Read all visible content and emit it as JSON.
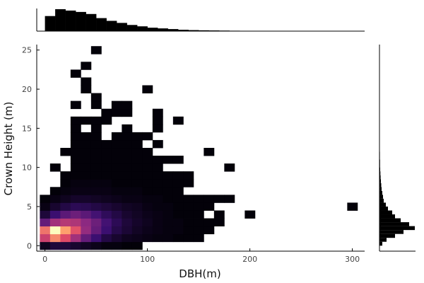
{
  "chart_data": {
    "type": "heatmap",
    "title": "",
    "xlabel": "DBH(m)",
    "ylabel": "Crown Height (m)",
    "xlim": [
      -8,
      312
    ],
    "ylim": [
      -0.7,
      25.7
    ],
    "x_ticks": [
      0,
      100,
      200,
      300
    ],
    "x_tick_labels": [
      "0",
      "100",
      "200",
      "300"
    ],
    "y_ticks": [
      0,
      5,
      10,
      15,
      20,
      25
    ],
    "y_tick_labels": [
      "0",
      "5",
      "10",
      "15",
      "20",
      "25"
    ],
    "colormap": [
      "#000004",
      "#3b0f70",
      "#8c2981",
      "#de4968",
      "#fe9f6d",
      "#fcfdbf"
    ],
    "grid": false,
    "bin_width_x": 10,
    "bin_height_y": 1,
    "heatmap_cells": [
      {
        "x": 0,
        "y": 0,
        "v": 0.05
      },
      {
        "x": 10,
        "y": 0,
        "v": 0.1
      },
      {
        "x": 20,
        "y": 0,
        "v": 0.1
      },
      {
        "x": 30,
        "y": 0,
        "v": 0.08
      },
      {
        "x": 40,
        "y": 0,
        "v": 0.06
      },
      {
        "x": 50,
        "y": 0,
        "v": 0.04
      },
      {
        "x": 60,
        "y": 0,
        "v": 0.02
      },
      {
        "x": 70,
        "y": 0,
        "v": 0.02
      },
      {
        "x": 80,
        "y": 0,
        "v": 0.01
      },
      {
        "x": 90,
        "y": 0,
        "v": 0.01
      },
      {
        "x": 0,
        "y": 1,
        "v": 0.55
      },
      {
        "x": 10,
        "y": 1,
        "v": 0.75
      },
      {
        "x": 20,
        "y": 1,
        "v": 0.6
      },
      {
        "x": 30,
        "y": 1,
        "v": 0.45
      },
      {
        "x": 40,
        "y": 1,
        "v": 0.3
      },
      {
        "x": 50,
        "y": 1,
        "v": 0.2
      },
      {
        "x": 60,
        "y": 1,
        "v": 0.12
      },
      {
        "x": 70,
        "y": 1,
        "v": 0.08
      },
      {
        "x": 80,
        "y": 1,
        "v": 0.05
      },
      {
        "x": 90,
        "y": 1,
        "v": 0.04
      },
      {
        "x": 100,
        "y": 1,
        "v": 0.03
      },
      {
        "x": 110,
        "y": 1,
        "v": 0.02
      },
      {
        "x": 120,
        "y": 1,
        "v": 0.02
      },
      {
        "x": 130,
        "y": 1,
        "v": 0.01
      },
      {
        "x": 140,
        "y": 1,
        "v": 0.01
      },
      {
        "x": 150,
        "y": 1,
        "v": 0.01
      },
      {
        "x": 0,
        "y": 2,
        "v": 0.7
      },
      {
        "x": 10,
        "y": 2,
        "v": 1.0
      },
      {
        "x": 20,
        "y": 2,
        "v": 0.8
      },
      {
        "x": 30,
        "y": 2,
        "v": 0.62
      },
      {
        "x": 40,
        "y": 2,
        "v": 0.42
      },
      {
        "x": 50,
        "y": 2,
        "v": 0.3
      },
      {
        "x": 60,
        "y": 2,
        "v": 0.2
      },
      {
        "x": 70,
        "y": 2,
        "v": 0.13
      },
      {
        "x": 80,
        "y": 2,
        "v": 0.09
      },
      {
        "x": 90,
        "y": 2,
        "v": 0.06
      },
      {
        "x": 100,
        "y": 2,
        "v": 0.04
      },
      {
        "x": 110,
        "y": 2,
        "v": 0.03
      },
      {
        "x": 120,
        "y": 2,
        "v": 0.02
      },
      {
        "x": 130,
        "y": 2,
        "v": 0.02
      },
      {
        "x": 140,
        "y": 2,
        "v": 0.01
      },
      {
        "x": 150,
        "y": 2,
        "v": 0.01
      },
      {
        "x": 160,
        "y": 2,
        "v": 0.01
      },
      {
        "x": 0,
        "y": 3,
        "v": 0.3
      },
      {
        "x": 10,
        "y": 3,
        "v": 0.45
      },
      {
        "x": 20,
        "y": 3,
        "v": 0.5
      },
      {
        "x": 30,
        "y": 3,
        "v": 0.48
      },
      {
        "x": 40,
        "y": 3,
        "v": 0.4
      },
      {
        "x": 50,
        "y": 3,
        "v": 0.32
      },
      {
        "x": 60,
        "y": 3,
        "v": 0.22
      },
      {
        "x": 70,
        "y": 3,
        "v": 0.15
      },
      {
        "x": 80,
        "y": 3,
        "v": 0.1
      },
      {
        "x": 90,
        "y": 3,
        "v": 0.07
      },
      {
        "x": 100,
        "y": 3,
        "v": 0.05
      },
      {
        "x": 110,
        "y": 3,
        "v": 0.03
      },
      {
        "x": 120,
        "y": 3,
        "v": 0.02
      },
      {
        "x": 130,
        "y": 3,
        "v": 0.02
      },
      {
        "x": 140,
        "y": 3,
        "v": 0.01
      },
      {
        "x": 150,
        "y": 3,
        "v": 0.01
      },
      {
        "x": 160,
        "y": 3,
        "v": 0.01
      },
      {
        "x": 170,
        "y": 3,
        "v": 0.01
      },
      {
        "x": 0,
        "y": 4,
        "v": 0.1
      },
      {
        "x": 10,
        "y": 4,
        "v": 0.2
      },
      {
        "x": 20,
        "y": 4,
        "v": 0.28
      },
      {
        "x": 30,
        "y": 4,
        "v": 0.32
      },
      {
        "x": 40,
        "y": 4,
        "v": 0.28
      },
      {
        "x": 50,
        "y": 4,
        "v": 0.22
      },
      {
        "x": 60,
        "y": 4,
        "v": 0.16
      },
      {
        "x": 70,
        "y": 4,
        "v": 0.12
      },
      {
        "x": 80,
        "y": 4,
        "v": 0.08
      },
      {
        "x": 90,
        "y": 4,
        "v": 0.06
      },
      {
        "x": 100,
        "y": 4,
        "v": 0.04
      },
      {
        "x": 110,
        "y": 4,
        "v": 0.03
      },
      {
        "x": 120,
        "y": 4,
        "v": 0.02
      },
      {
        "x": 130,
        "y": 4,
        "v": 0.01
      },
      {
        "x": 140,
        "y": 4,
        "v": 0.01
      },
      {
        "x": 150,
        "y": 4,
        "v": 0.01
      },
      {
        "x": 170,
        "y": 4,
        "v": 0.01
      },
      {
        "x": 200,
        "y": 4,
        "v": 0.01
      },
      {
        "x": 0,
        "y": 5,
        "v": 0.03
      },
      {
        "x": 10,
        "y": 5,
        "v": 0.08
      },
      {
        "x": 20,
        "y": 5,
        "v": 0.12
      },
      {
        "x": 30,
        "y": 5,
        "v": 0.15
      },
      {
        "x": 40,
        "y": 5,
        "v": 0.14
      },
      {
        "x": 50,
        "y": 5,
        "v": 0.12
      },
      {
        "x": 60,
        "y": 5,
        "v": 0.1
      },
      {
        "x": 70,
        "y": 5,
        "v": 0.08
      },
      {
        "x": 80,
        "y": 5,
        "v": 0.06
      },
      {
        "x": 90,
        "y": 5,
        "v": 0.05
      },
      {
        "x": 100,
        "y": 5,
        "v": 0.03
      },
      {
        "x": 110,
        "y": 5,
        "v": 0.02
      },
      {
        "x": 120,
        "y": 5,
        "v": 0.02
      },
      {
        "x": 130,
        "y": 5,
        "v": 0.01
      },
      {
        "x": 140,
        "y": 5,
        "v": 0.01
      },
      {
        "x": 150,
        "y": 5,
        "v": 0.01
      },
      {
        "x": 160,
        "y": 5,
        "v": 0.01
      },
      {
        "x": 300,
        "y": 5,
        "v": 0.01
      },
      {
        "x": 0,
        "y": 6,
        "v": 0.01
      },
      {
        "x": 10,
        "y": 6,
        "v": 0.03
      },
      {
        "x": 20,
        "y": 6,
        "v": 0.05
      },
      {
        "x": 30,
        "y": 6,
        "v": 0.07
      },
      {
        "x": 40,
        "y": 6,
        "v": 0.07
      },
      {
        "x": 50,
        "y": 6,
        "v": 0.06
      },
      {
        "x": 60,
        "y": 6,
        "v": 0.05
      },
      {
        "x": 70,
        "y": 6,
        "v": 0.04
      },
      {
        "x": 80,
        "y": 6,
        "v": 0.03
      },
      {
        "x": 90,
        "y": 6,
        "v": 0.03
      },
      {
        "x": 100,
        "y": 6,
        "v": 0.02
      },
      {
        "x": 110,
        "y": 6,
        "v": 0.02
      },
      {
        "x": 120,
        "y": 6,
        "v": 0.01
      },
      {
        "x": 130,
        "y": 6,
        "v": 0.01
      },
      {
        "x": 140,
        "y": 6,
        "v": 0.01
      },
      {
        "x": 150,
        "y": 6,
        "v": 0.01
      },
      {
        "x": 160,
        "y": 6,
        "v": 0.01
      },
      {
        "x": 170,
        "y": 6,
        "v": 0.01
      },
      {
        "x": 180,
        "y": 6,
        "v": 0.01
      },
      {
        "x": 10,
        "y": 7,
        "v": 0.01
      },
      {
        "x": 20,
        "y": 7,
        "v": 0.02
      },
      {
        "x": 30,
        "y": 7,
        "v": 0.03
      },
      {
        "x": 40,
        "y": 7,
        "v": 0.03
      },
      {
        "x": 50,
        "y": 7,
        "v": 0.03
      },
      {
        "x": 60,
        "y": 7,
        "v": 0.03
      },
      {
        "x": 70,
        "y": 7,
        "v": 0.02
      },
      {
        "x": 80,
        "y": 7,
        "v": 0.02
      },
      {
        "x": 90,
        "y": 7,
        "v": 0.02
      },
      {
        "x": 100,
        "y": 7,
        "v": 0.01
      },
      {
        "x": 110,
        "y": 7,
        "v": 0.01
      },
      {
        "x": 120,
        "y": 7,
        "v": 0.01
      },
      {
        "x": 130,
        "y": 7,
        "v": 0.01
      },
      {
        "x": 20,
        "y": 8,
        "v": 0.01
      },
      {
        "x": 30,
        "y": 8,
        "v": 0.02
      },
      {
        "x": 40,
        "y": 8,
        "v": 0.02
      },
      {
        "x": 50,
        "y": 8,
        "v": 0.02
      },
      {
        "x": 60,
        "y": 8,
        "v": 0.02
      },
      {
        "x": 70,
        "y": 8,
        "v": 0.01
      },
      {
        "x": 80,
        "y": 8,
        "v": 0.01
      },
      {
        "x": 90,
        "y": 8,
        "v": 0.01
      },
      {
        "x": 100,
        "y": 8,
        "v": 0.01
      },
      {
        "x": 110,
        "y": 8,
        "v": 0.01
      },
      {
        "x": 120,
        "y": 8,
        "v": 0.01
      },
      {
        "x": 130,
        "y": 8,
        "v": 0.01
      },
      {
        "x": 140,
        "y": 8,
        "v": 0.01
      },
      {
        "x": 20,
        "y": 9,
        "v": 0.01
      },
      {
        "x": 30,
        "y": 9,
        "v": 0.01
      },
      {
        "x": 40,
        "y": 9,
        "v": 0.01
      },
      {
        "x": 50,
        "y": 9,
        "v": 0.01
      },
      {
        "x": 60,
        "y": 9,
        "v": 0.01
      },
      {
        "x": 70,
        "y": 9,
        "v": 0.01
      },
      {
        "x": 80,
        "y": 9,
        "v": 0.01
      },
      {
        "x": 90,
        "y": 9,
        "v": 0.01
      },
      {
        "x": 100,
        "y": 9,
        "v": 0.01
      },
      {
        "x": 110,
        "y": 9,
        "v": 0.01
      },
      {
        "x": 120,
        "y": 9,
        "v": 0.01
      },
      {
        "x": 130,
        "y": 9,
        "v": 0.01
      },
      {
        "x": 140,
        "y": 9,
        "v": 0.01
      },
      {
        "x": 10,
        "y": 10,
        "v": 0.01
      },
      {
        "x": 30,
        "y": 10,
        "v": 0.01
      },
      {
        "x": 40,
        "y": 10,
        "v": 0.01
      },
      {
        "x": 50,
        "y": 10,
        "v": 0.01
      },
      {
        "x": 60,
        "y": 10,
        "v": 0.01
      },
      {
        "x": 70,
        "y": 10,
        "v": 0.01
      },
      {
        "x": 80,
        "y": 10,
        "v": 0.01
      },
      {
        "x": 90,
        "y": 10,
        "v": 0.01
      },
      {
        "x": 100,
        "y": 10,
        "v": 0.01
      },
      {
        "x": 110,
        "y": 10,
        "v": 0.01
      },
      {
        "x": 180,
        "y": 10,
        "v": 0.01
      },
      {
        "x": 30,
        "y": 11,
        "v": 0.01
      },
      {
        "x": 40,
        "y": 11,
        "v": 0.01
      },
      {
        "x": 50,
        "y": 11,
        "v": 0.01
      },
      {
        "x": 60,
        "y": 11,
        "v": 0.01
      },
      {
        "x": 70,
        "y": 11,
        "v": 0.01
      },
      {
        "x": 80,
        "y": 11,
        "v": 0.01
      },
      {
        "x": 90,
        "y": 11,
        "v": 0.01
      },
      {
        "x": 100,
        "y": 11,
        "v": 0.01
      },
      {
        "x": 110,
        "y": 11,
        "v": 0.01
      },
      {
        "x": 120,
        "y": 11,
        "v": 0.01
      },
      {
        "x": 130,
        "y": 11,
        "v": 0.01
      },
      {
        "x": 20,
        "y": 12,
        "v": 0.01
      },
      {
        "x": 30,
        "y": 12,
        "v": 0.01
      },
      {
        "x": 40,
        "y": 12,
        "v": 0.01
      },
      {
        "x": 50,
        "y": 12,
        "v": 0.01
      },
      {
        "x": 60,
        "y": 12,
        "v": 0.01
      },
      {
        "x": 70,
        "y": 12,
        "v": 0.01
      },
      {
        "x": 80,
        "y": 12,
        "v": 0.01
      },
      {
        "x": 90,
        "y": 12,
        "v": 0.01
      },
      {
        "x": 100,
        "y": 12,
        "v": 0.01
      },
      {
        "x": 160,
        "y": 12,
        "v": 0.01
      },
      {
        "x": 30,
        "y": 13,
        "v": 0.01
      },
      {
        "x": 40,
        "y": 13,
        "v": 0.01
      },
      {
        "x": 50,
        "y": 13,
        "v": 0.01
      },
      {
        "x": 60,
        "y": 13,
        "v": 0.01
      },
      {
        "x": 70,
        "y": 13,
        "v": 0.01
      },
      {
        "x": 80,
        "y": 13,
        "v": 0.01
      },
      {
        "x": 90,
        "y": 13,
        "v": 0.01
      },
      {
        "x": 110,
        "y": 13,
        "v": 0.01
      },
      {
        "x": 30,
        "y": 14,
        "v": 0.01
      },
      {
        "x": 40,
        "y": 14,
        "v": 0.01
      },
      {
        "x": 50,
        "y": 14,
        "v": 0.01
      },
      {
        "x": 70,
        "y": 14,
        "v": 0.01
      },
      {
        "x": 80,
        "y": 14,
        "v": 0.01
      },
      {
        "x": 90,
        "y": 14,
        "v": 0.01
      },
      {
        "x": 100,
        "y": 14,
        "v": 0.01
      },
      {
        "x": 30,
        "y": 15,
        "v": 0.01
      },
      {
        "x": 50,
        "y": 15,
        "v": 0.01
      },
      {
        "x": 80,
        "y": 15,
        "v": 0.01
      },
      {
        "x": 110,
        "y": 15,
        "v": 0.01
      },
      {
        "x": 30,
        "y": 16,
        "v": 0.01
      },
      {
        "x": 40,
        "y": 16,
        "v": 0.01
      },
      {
        "x": 50,
        "y": 16,
        "v": 0.01
      },
      {
        "x": 60,
        "y": 16,
        "v": 0.01
      },
      {
        "x": 110,
        "y": 16,
        "v": 0.01
      },
      {
        "x": 130,
        "y": 16,
        "v": 0.01
      },
      {
        "x": 60,
        "y": 17,
        "v": 0.01
      },
      {
        "x": 70,
        "y": 17,
        "v": 0.01
      },
      {
        "x": 80,
        "y": 17,
        "v": 0.01
      },
      {
        "x": 110,
        "y": 17,
        "v": 0.01
      },
      {
        "x": 30,
        "y": 18,
        "v": 0.01
      },
      {
        "x": 50,
        "y": 18,
        "v": 0.01
      },
      {
        "x": 70,
        "y": 18,
        "v": 0.01
      },
      {
        "x": 80,
        "y": 18,
        "v": 0.01
      },
      {
        "x": 50,
        "y": 19,
        "v": 0.01
      },
      {
        "x": 40,
        "y": 20,
        "v": 0.01
      },
      {
        "x": 100,
        "y": 20,
        "v": 0.01
      },
      {
        "x": 40,
        "y": 21,
        "v": 0.01
      },
      {
        "x": 30,
        "y": 22,
        "v": 0.01
      },
      {
        "x": 40,
        "y": 23,
        "v": 0.01
      },
      {
        "x": 50,
        "y": 25,
        "v": 0.01
      }
    ],
    "x_marginal": {
      "bin_width": 10,
      "bins": [
        0,
        10,
        20,
        30,
        40,
        50,
        60,
        70,
        80,
        90,
        100,
        110,
        120,
        130,
        140,
        150,
        160,
        170,
        180,
        190,
        200,
        210,
        220,
        230,
        240,
        250,
        260,
        270,
        280,
        290,
        300
      ],
      "counts": [
        22,
        32,
        30,
        28,
        25,
        19,
        15,
        12,
        9,
        7,
        5,
        4,
        3,
        2,
        1.5,
        1.2,
        1,
        0.8,
        0.6,
        0.5,
        0.4,
        0.3,
        0.3,
        0.2,
        0.2,
        0.2,
        0.2,
        0.1,
        0.1,
        0.1,
        0.1
      ]
    },
    "y_marginal": {
      "bin_height": 0.5,
      "bins": [
        0,
        0.5,
        1,
        1.5,
        2,
        2.5,
        3,
        3.5,
        4,
        4.5,
        5,
        5.5,
        6,
        6.5,
        7,
        7.5,
        8,
        8.5,
        9,
        9.5,
        10,
        11,
        12,
        13,
        14,
        15,
        16,
        17,
        18,
        19,
        20,
        21,
        22,
        23,
        24,
        25
      ],
      "counts": [
        4,
        10,
        22,
        34,
        50,
        42,
        30,
        22,
        18,
        12,
        9,
        6,
        5,
        4,
        3,
        2.5,
        2,
        1.6,
        1.3,
        1,
        0.8,
        0.6,
        0.5,
        0.4,
        0.3,
        0.3,
        0.2,
        0.2,
        0.2,
        0.15,
        0.1,
        0.1,
        0.1,
        0.1,
        0.1,
        0.1
      ]
    }
  }
}
